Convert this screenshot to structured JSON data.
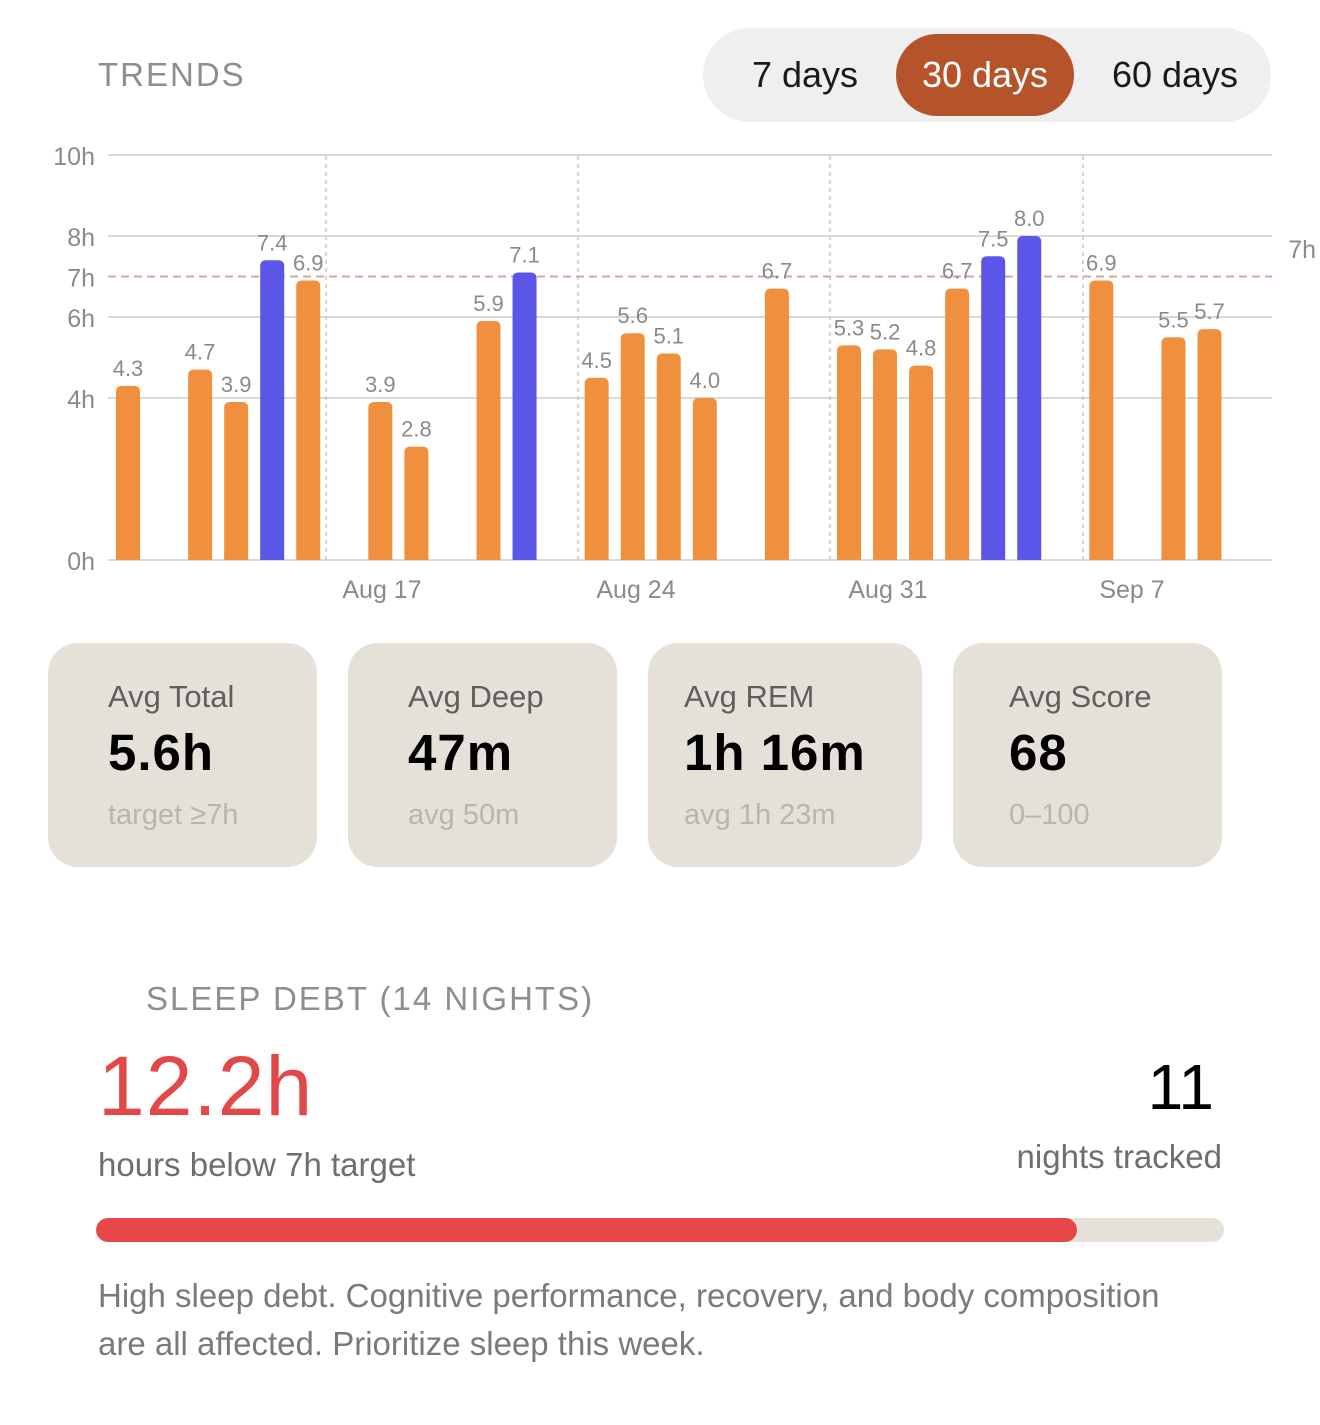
{
  "header": {
    "title": "TRENDS"
  },
  "range_selector": {
    "options": [
      "7 days",
      "30 days",
      "60 days"
    ],
    "selected": "30 days"
  },
  "colors": {
    "bar_normal": "#f0903f",
    "bar_highlight": "#5b56e8",
    "target_line": "#d9a59a",
    "selected_tab": "#b5532a",
    "debt_red": "#e34848"
  },
  "chart_data": {
    "type": "bar",
    "y_axis_labels": [
      "10h",
      "8h",
      "7h",
      "6h",
      "4h",
      "0h"
    ],
    "ylim": [
      0,
      10
    ],
    "x_tick_labels": [
      "Aug 17",
      "Aug 24",
      "Aug 31",
      "Sep 7"
    ],
    "target_label": "7h",
    "target": 7,
    "bars": [
      {
        "day": 0,
        "value": 4.3,
        "label": "4.3",
        "highlight": false
      },
      {
        "day": 2,
        "value": 4.7,
        "label": "4.7",
        "highlight": false
      },
      {
        "day": 3,
        "value": 3.9,
        "label": "3.9",
        "highlight": false
      },
      {
        "day": 4,
        "value": 7.4,
        "label": "7.4",
        "highlight": true
      },
      {
        "day": 5,
        "value": 6.9,
        "label": "6.9",
        "highlight": false
      },
      {
        "day": 7,
        "value": 3.9,
        "label": "3.9",
        "highlight": false
      },
      {
        "day": 8,
        "value": 2.8,
        "label": "2.8",
        "highlight": false
      },
      {
        "day": 10,
        "value": 5.9,
        "label": "5.9",
        "highlight": false
      },
      {
        "day": 11,
        "value": 7.1,
        "label": "7.1",
        "highlight": true
      },
      {
        "day": 13,
        "value": 4.5,
        "label": "4.5",
        "highlight": false
      },
      {
        "day": 14,
        "value": 5.6,
        "label": "5.6",
        "highlight": false
      },
      {
        "day": 15,
        "value": 5.1,
        "label": "5.1",
        "highlight": false
      },
      {
        "day": 16,
        "value": 4.0,
        "label": "4.0",
        "highlight": false
      },
      {
        "day": 18,
        "value": 6.7,
        "label": "6.7",
        "highlight": false
      },
      {
        "day": 20,
        "value": 5.3,
        "label": "5.3",
        "highlight": false
      },
      {
        "day": 21,
        "value": 5.2,
        "label": "5.2",
        "highlight": false
      },
      {
        "day": 22,
        "value": 4.8,
        "label": "4.8",
        "highlight": false
      },
      {
        "day": 23,
        "value": 6.7,
        "label": "6.7",
        "highlight": false
      },
      {
        "day": 24,
        "value": 7.5,
        "label": "7.5",
        "highlight": true
      },
      {
        "day": 25,
        "value": 8.0,
        "label": "8.0",
        "highlight": true
      },
      {
        "day": 27,
        "value": 6.9,
        "label": "6.9",
        "highlight": false
      },
      {
        "day": 29,
        "value": 5.5,
        "label": "5.5",
        "highlight": false
      },
      {
        "day": 30,
        "value": 5.7,
        "label": "5.7",
        "highlight": false
      }
    ]
  },
  "stats": [
    {
      "label": "Avg Total",
      "value": "5.6h",
      "sub": "target ≥7h"
    },
    {
      "label": "Avg Deep",
      "value": "47m",
      "sub": "avg 50m"
    },
    {
      "label": "Avg REM",
      "value": "1h 16m",
      "sub": "avg 1h 23m"
    },
    {
      "label": "Avg Score",
      "value": "68",
      "sub": "0–100"
    }
  ],
  "sleep_debt": {
    "title": "SLEEP DEBT (14 NIGHTS)",
    "value": "12.2h",
    "caption": "hours below 7h target",
    "nights_value": "11",
    "nights_caption": "nights tracked",
    "progress_fraction": 0.87,
    "advice": "High sleep debt. Cognitive performance, recovery, and body composition are all affected. Prioritize sleep this week."
  }
}
